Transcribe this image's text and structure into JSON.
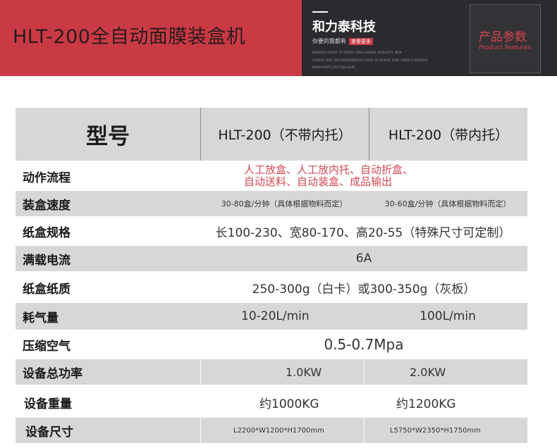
{
  "banner": {
    "title": "HLT-200全自动面膜装盒机",
    "brand": "和力泰科技",
    "slogan": "你要的我都有",
    "more_button": "查看更多",
    "small_lines": [
      "MANUFACTURER TO SUPPLY FREE SAMPLE INTEGRITY NEW",
      "CHARTS FAST DELIVERYMANUFACTURER TO SUPPLY FREE SAMPLE INTEGRIT",
      "MERCHANTS FAST DELIVERY"
    ],
    "param_title": "产品参数",
    "param_subtitle": "Product features"
  },
  "table": {
    "header": {
      "label": "型号",
      "model_a": "HLT-200（不带内托）",
      "model_b": "HLT-200（带内托）"
    },
    "rows": {
      "flow": {
        "label": "动作流程",
        "line1": "人工放盒、人工放内托、自动折盒、",
        "line2": "自动送料、自动装盒、成品输出"
      },
      "speed": {
        "label": "装盒速度",
        "a": "30-80盒/分钟（具体根据物料而定）",
        "b": "30-60盒/分钟（具体根据物料而定）"
      },
      "spec": {
        "label": "纸盒规格",
        "value": "长100-230、宽80-170、高20-55（特殊尺寸可定制）"
      },
      "current": {
        "label": "满载电流",
        "value": "6A"
      },
      "paper": {
        "label": "纸盒纸质",
        "value": "250-300g（白卡）或300-350g（灰板）"
      },
      "air": {
        "label": "耗气量",
        "a": "10-20L/min",
        "b": "100L/min"
      },
      "pressure": {
        "label": "压缩空气",
        "value": "0.5-0.7Mpa"
      },
      "power": {
        "label": "设备总功率",
        "a": "1.0KW",
        "b": "2.0KW"
      },
      "weight": {
        "label": "设备重量",
        "a": "约1000KG",
        "b": "约1200KG"
      },
      "size": {
        "label": "设备尺寸",
        "a": "L2200*W1200*H1700mm",
        "b": "L5750*W2350*H1750mm"
      }
    }
  }
}
